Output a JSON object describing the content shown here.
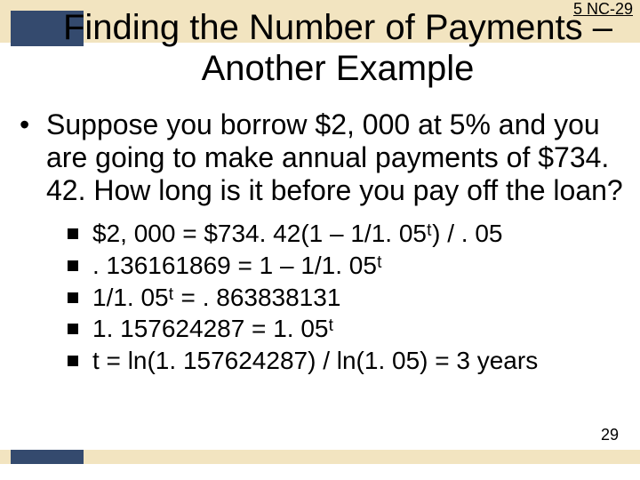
{
  "colors": {
    "band_bg": "#f2e4c0",
    "accent_block": "#344a6e",
    "text": "#000000",
    "page_bg": "#ffffff"
  },
  "typography": {
    "title_fontsize_pt": 30,
    "body_fontsize_pt": 24,
    "sub_fontsize_pt": 21,
    "header_ref_fontsize_pt": 14,
    "page_num_fontsize_pt": 14,
    "font_family": "Arial"
  },
  "layout": {
    "slide_width": 720,
    "slide_height": 540,
    "top_band_height": 48,
    "bottom_band_height": 16
  },
  "header": {
    "ref": "5 NC-29",
    "title": "Finding the Number of Payments – Another Example"
  },
  "body": {
    "bullet": "Suppose you borrow $2, 000 at 5% and you are going to make annual payments of $734. 42. How long is it before you pay off the loan?",
    "sub_items": [
      "$2, 000 = $734. 42(1 – 1/1. 05ᵗ) / . 05",
      ". 136161869 = 1 – 1/1. 05ᵗ",
      "1/1. 05ᵗ = . 863838131",
      "1. 157624287 = 1. 05ᵗ",
      "t = ln(1. 157624287) / ln(1. 05) = 3 years"
    ]
  },
  "footer": {
    "page_number": "29"
  }
}
